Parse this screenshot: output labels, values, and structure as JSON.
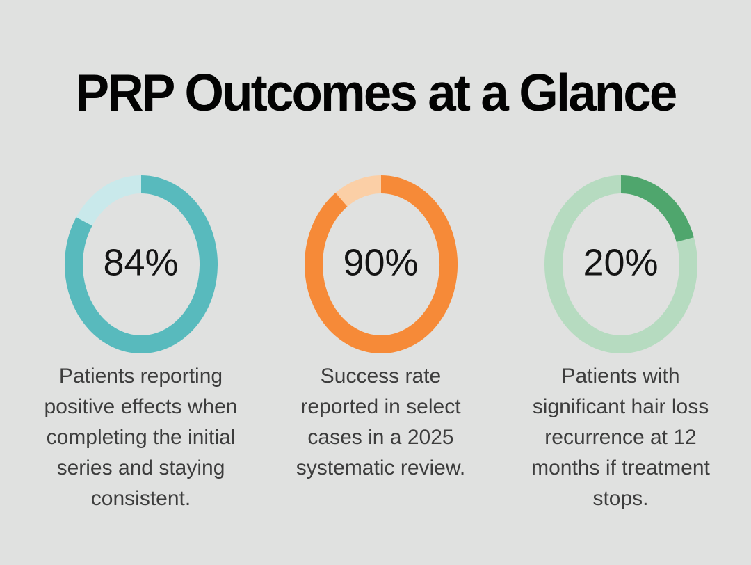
{
  "page": {
    "background_color": "#e0e1e0"
  },
  "header": {
    "title": "PRP Outcomes at a Glance",
    "title_color": "#030303"
  },
  "chart_data": [
    {
      "type": "donut",
      "value": 84,
      "label": "84%",
      "caption": "Patients reporting\npositive effects when\ncompleting the initial\nseries and staying\nconsistent.",
      "fill_color": "#58babd",
      "track_color": "#c9e9eb",
      "start_angle": "top",
      "direction": "clockwise"
    },
    {
      "type": "donut",
      "value": 90,
      "label": "90%",
      "caption": "Success rate\nreported in select\ncases in a 2025\nsystematic review.",
      "fill_color": "#f68a38",
      "track_color": "#fbcfa6",
      "start_angle": "top",
      "direction": "clockwise"
    },
    {
      "type": "donut",
      "value": 20,
      "label": "20%",
      "caption": "Patients with\nsignificant hair loss\nrecurrence at 12\nmonths if treatment\nstops.",
      "fill_color": "#4fa66d",
      "track_color": "#b6dbc0",
      "start_angle": "top",
      "direction": "clockwise"
    }
  ],
  "text_colors": {
    "percent_label": "#141414",
    "caption": "#3d3d3d"
  }
}
